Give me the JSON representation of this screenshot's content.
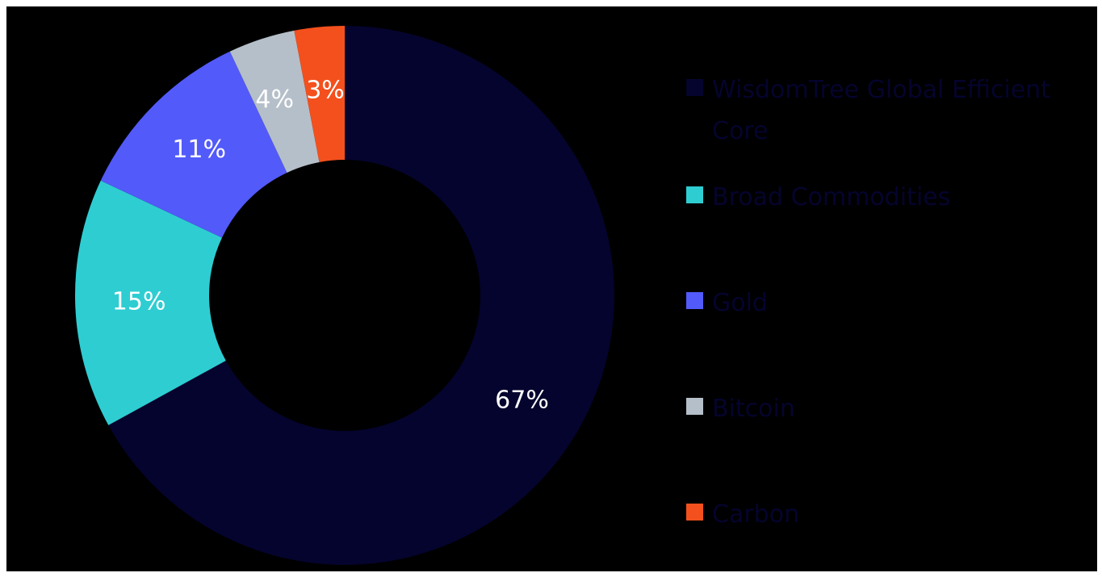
{
  "chart_data": {
    "type": "pie",
    "variant": "donut",
    "legend_position": "right",
    "slices": [
      {
        "label": "WisdomTree Global Efficient Core",
        "value": 67,
        "display": "67%",
        "color": "#05042e"
      },
      {
        "label": "Broad Commodities",
        "value": 15,
        "display": "15%",
        "color": "#2ecdd2"
      },
      {
        "label": "Gold",
        "value": 11,
        "display": "11%",
        "color": "#525afa"
      },
      {
        "label": "Bitcoin",
        "value": 4,
        "display": "4%",
        "color": "#b5bfc9"
      },
      {
        "label": "Carbon",
        "value": 3,
        "display": "3%",
        "color": "#f4501d"
      }
    ]
  },
  "legend": {
    "items": [
      {
        "label": "WisdomTree Global Efficient Core",
        "color": "#05042e"
      },
      {
        "label": "Broad Commodities",
        "color": "#2ecdd2"
      },
      {
        "label": "Gold",
        "color": "#525afa"
      },
      {
        "label": "Bitcoin",
        "color": "#b5bfc9"
      },
      {
        "label": "Carbon",
        "color": "#f4501d"
      }
    ]
  }
}
